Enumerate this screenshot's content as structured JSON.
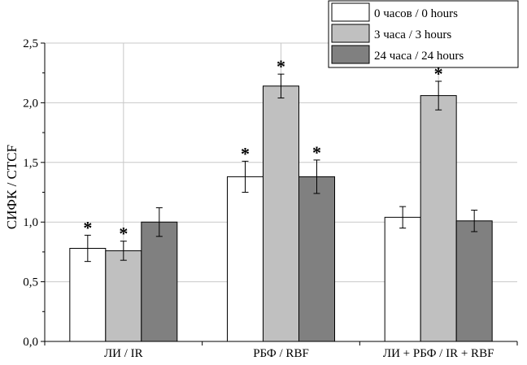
{
  "chart_data": {
    "type": "bar",
    "title": "",
    "xlabel": "",
    "ylabel": "СИФК / CTCF",
    "ylim": [
      0,
      2.5
    ],
    "yticks": [
      0.0,
      0.5,
      1.0,
      1.5,
      2.0,
      2.5
    ],
    "ytick_labels": [
      "0,0",
      "0,5",
      "1,0",
      "1,5",
      "2,0",
      "2,5"
    ],
    "grid": true,
    "legend_position": "top-right",
    "categories": [
      "ЛИ / IR",
      "РБФ / RBF",
      "ЛИ + РБФ / IR + RBF"
    ],
    "series": [
      {
        "name": "0 часов / 0 hours",
        "color": "#ffffff",
        "values": [
          0.78,
          1.38,
          1.04
        ],
        "errors": [
          0.11,
          0.13,
          0.09
        ],
        "significance": [
          "*",
          "*",
          ""
        ]
      },
      {
        "name": "3 часа / 3 hours",
        "color": "#c0c0c0",
        "values": [
          0.76,
          2.14,
          2.06
        ],
        "errors": [
          0.08,
          0.1,
          0.12
        ],
        "significance": [
          "*",
          "*",
          "*"
        ]
      },
      {
        "name": "24 часа / 24 hours",
        "color": "#808080",
        "values": [
          1.0,
          1.38,
          1.01
        ],
        "errors": [
          0.12,
          0.14,
          0.09
        ],
        "significance": [
          "",
          "*",
          ""
        ]
      }
    ]
  }
}
